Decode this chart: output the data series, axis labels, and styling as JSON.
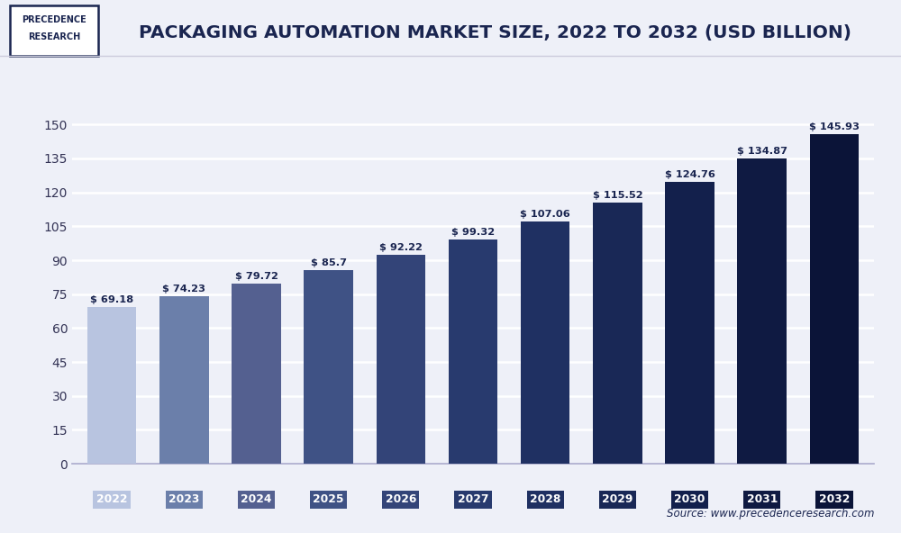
{
  "title": "PACKAGING AUTOMATION MARKET SIZE, 2022 TO 2032 (USD BILLION)",
  "years": [
    2022,
    2023,
    2024,
    2025,
    2026,
    2027,
    2028,
    2029,
    2030,
    2031,
    2032
  ],
  "values": [
    69.18,
    74.23,
    79.72,
    85.7,
    92.22,
    99.32,
    107.06,
    115.52,
    124.76,
    134.87,
    145.93
  ],
  "bar_colors": [
    "#b8c4e0",
    "#6b7faa",
    "#546090",
    "#3f5285",
    "#334478",
    "#283a6e",
    "#1f3062",
    "#192856",
    "#13204c",
    "#0f1a42",
    "#0b1438"
  ],
  "tick_label_colors": [
    "#b8c4e0",
    "#6b7faa",
    "#546090",
    "#3f5285",
    "#334478",
    "#283a6e",
    "#1f3062",
    "#192856",
    "#13204c",
    "#0f1a42",
    "#0b1438"
  ],
  "yticks": [
    0,
    15,
    30,
    45,
    60,
    75,
    90,
    105,
    120,
    135,
    150
  ],
  "ylim": [
    0,
    165
  ],
  "background_color": "#eef0f8",
  "plot_bg_color": "#eef0f8",
  "grid_color": "#ffffff",
  "source_text": "Source: www.precedenceresearch.com",
  "title_fontsize": 14.5,
  "value_label_color": "#1a2550"
}
